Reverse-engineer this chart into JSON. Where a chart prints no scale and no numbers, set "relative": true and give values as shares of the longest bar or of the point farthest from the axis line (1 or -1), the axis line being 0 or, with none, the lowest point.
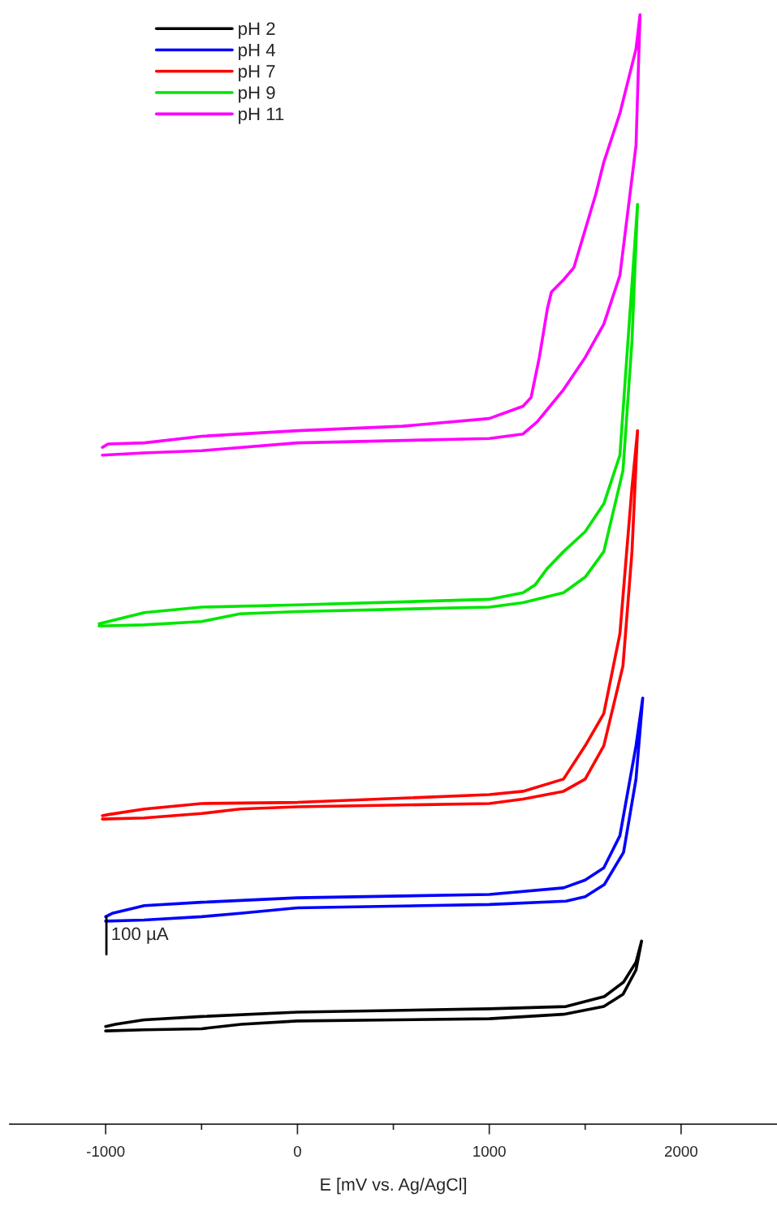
{
  "chart_data": {
    "type": "line",
    "relative": true,
    "xlabel": "E [mV vs. Ag/AgCl]",
    "xlim": [
      -1500,
      2500
    ],
    "xticks": [
      -1000,
      {
        "value": -500,
        "label": null
      },
      0,
      {
        "value": 500,
        "label": null
      },
      1000,
      {
        "value": 1500,
        "label": null
      },
      2000
    ],
    "legend": "top left",
    "grid": false,
    "line_style": "solid",
    "marker": "none",
    "tick_labels": "x",
    "annotations": [
      "100 µA"
    ],
    "series": [
      {
        "name": "pH 2",
        "color": "#000000",
        "x": [
          -1000,
          -798,
          -500,
          -294,
          0,
          1000,
          1387,
          1597,
          1697,
          1765,
          1794,
          1765,
          1700,
          1600,
          1400,
          1000,
          0,
          -500,
          -800,
          -950,
          -1000
        ],
        "values": [
          0.084,
          0.085,
          0.086,
          0.09,
          0.093,
          0.095,
          0.099,
          0.106,
          0.117,
          0.139,
          0.165,
          0.146,
          0.128,
          0.115,
          0.106,
          0.104,
          0.101,
          0.097,
          0.094,
          0.09,
          0.088
        ]
      },
      {
        "name": "pH 4",
        "color": "#0000ff",
        "x": [
          -1000,
          -800,
          -500,
          -300,
          0,
          1000,
          1400,
          1500,
          1600,
          1700,
          1765,
          1800,
          1765,
          1681,
          1597,
          1500,
          1387,
          1000,
          0,
          -500,
          -798,
          -966,
          -1000
        ],
        "values": [
          0.183,
          0.184,
          0.187,
          0.19,
          0.195,
          0.198,
          0.201,
          0.205,
          0.216,
          0.245,
          0.311,
          0.384,
          0.341,
          0.26,
          0.231,
          0.22,
          0.213,
          0.207,
          0.204,
          0.2,
          0.197,
          0.19,
          0.187
        ]
      },
      {
        "name": "pH 7",
        "color": "#ff0000",
        "x": [
          -1017,
          -800,
          -500,
          -300,
          0,
          1000,
          1176,
          1387,
          1500,
          1597,
          1697,
          1744,
          1773,
          1744,
          1681,
          1597,
          1500,
          1387,
          1176,
          1000,
          0,
          -500,
          -798,
          -987,
          -1017
        ],
        "values": [
          0.275,
          0.276,
          0.28,
          0.284,
          0.286,
          0.289,
          0.293,
          0.3,
          0.311,
          0.341,
          0.413,
          0.516,
          0.625,
          0.574,
          0.442,
          0.37,
          0.341,
          0.311,
          0.3,
          0.297,
          0.29,
          0.289,
          0.284,
          0.279,
          0.278
        ]
      },
      {
        "name": "pH 9",
        "color": "#00e600",
        "x": [
          -1034,
          -800,
          -500,
          -300,
          0,
          1000,
          1176,
          1387,
          1500,
          1597,
          1697,
          1744,
          1773,
          1744,
          1681,
          1597,
          1500,
          1387,
          1303,
          1239,
          1176,
          1000,
          0,
          -500,
          -798,
          -987,
          -1034
        ],
        "values": [
          0.449,
          0.45,
          0.453,
          0.46,
          0.462,
          0.466,
          0.47,
          0.479,
          0.493,
          0.516,
          0.589,
          0.706,
          0.829,
          0.757,
          0.603,
          0.559,
          0.534,
          0.516,
          0.501,
          0.486,
          0.479,
          0.473,
          0.468,
          0.466,
          0.461,
          0.453,
          0.451
        ]
      },
      {
        "name": "pH 11",
        "color": "#ff00ff",
        "x": [
          -1017,
          -800,
          -500,
          0,
          1000,
          1176,
          1250,
          1387,
          1500,
          1597,
          1681,
          1765,
          1786,
          1765,
          1681,
          1597,
          1555,
          1441,
          1387,
          1324,
          1303,
          1261,
          1218,
          1176,
          1000,
          546,
          0,
          -500,
          -798,
          -987,
          -1017
        ],
        "values": [
          0.603,
          0.605,
          0.607,
          0.614,
          0.618,
          0.622,
          0.633,
          0.662,
          0.691,
          0.721,
          0.765,
          0.882,
          1.0,
          0.969,
          0.911,
          0.867,
          0.838,
          0.772,
          0.761,
          0.75,
          0.735,
          0.691,
          0.655,
          0.647,
          0.636,
          0.629,
          0.625,
          0.62,
          0.614,
          0.613,
          0.61
        ]
      }
    ]
  }
}
